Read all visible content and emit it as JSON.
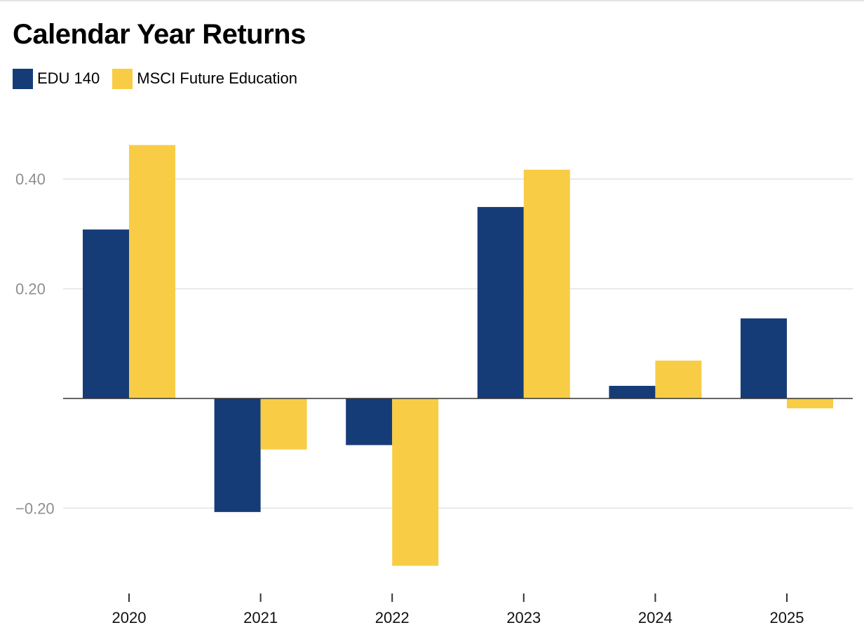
{
  "chart_data": {
    "type": "bar",
    "title": "Calendar Year Returns",
    "categories": [
      "2020",
      "2021",
      "2022",
      "2023",
      "2024",
      "2025"
    ],
    "series": [
      {
        "name": "EDU 140",
        "color": "#163c78",
        "values": [
          0.308,
          -0.207,
          -0.085,
          0.349,
          0.023,
          0.146
        ]
      },
      {
        "name": "MSCI Future Education",
        "color": "#f8cd45",
        "values": [
          0.462,
          -0.093,
          -0.305,
          0.417,
          0.069,
          -0.018
        ]
      }
    ],
    "yticks": [
      0.4,
      0.2,
      -0.2
    ],
    "ytick_labels": [
      "0.40",
      "0.20",
      "−0.20"
    ],
    "ylim": [
      -0.35,
      0.52
    ],
    "xlabel": "",
    "ylabel": "",
    "grid": true,
    "legend_position": "top-left"
  }
}
